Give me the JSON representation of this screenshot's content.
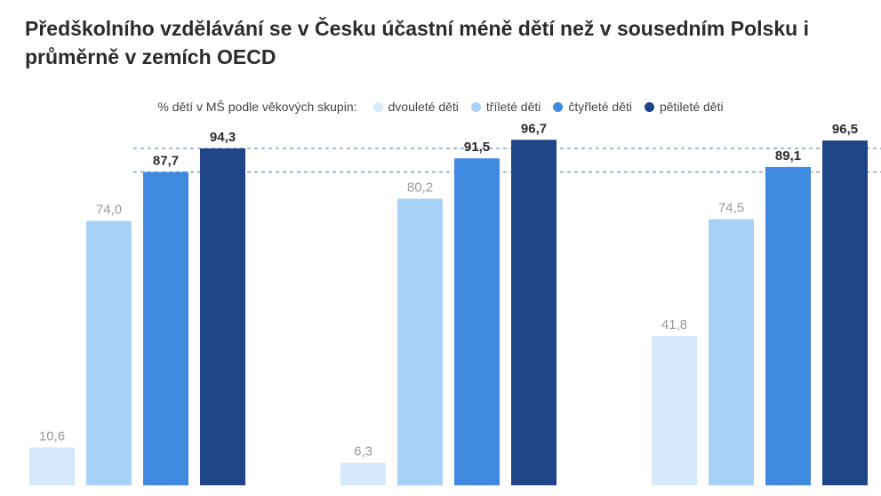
{
  "title": "Předškolního vzdělávání se v Česku účastní méně dětí než v sousedním Polsku i průměrně v zemích OECD",
  "legend": {
    "lead": "% dětí v MŠ podle věkových skupin:",
    "items": [
      {
        "label": "dvouleté děti",
        "color": "#d6e8fb"
      },
      {
        "label": "tříleté děti",
        "color": "#a9d0f7"
      },
      {
        "label": "čtyřleté děti",
        "color": "#3f8ae0"
      },
      {
        "label": "pětileté děti",
        "color": "#1f4488"
      }
    ]
  },
  "chart_data": {
    "type": "bar",
    "categories": [
      "",
      "",
      ""
    ],
    "series": [
      {
        "name": "dvouleté děti",
        "values": [
          10.6,
          6.3,
          41.8
        ],
        "color": "#d6e8fb",
        "label_color": "#9a9a9a",
        "label_bold": false
      },
      {
        "name": "tříleté děti",
        "values": [
          74.0,
          80.2,
          74.5
        ],
        "color": "#a9d0f7",
        "label_color": "#9a9a9a",
        "label_bold": false
      },
      {
        "name": "čtyřleté děti",
        "values": [
          87.7,
          91.5,
          89.1
        ],
        "color": "#3f8ae0",
        "label_color": "#2b2b2b",
        "label_bold": true
      },
      {
        "name": "pětileté děti",
        "values": [
          94.3,
          96.7,
          96.5
        ],
        "color": "#1f4488",
        "label_color": "#2b2b2b",
        "label_bold": true
      }
    ],
    "value_labels": [
      [
        "10,6",
        "74,0",
        "87,7",
        "94,3"
      ],
      [
        "6,3",
        "80,2",
        "91,5",
        "96,7"
      ],
      [
        "41,8",
        "74,5",
        "89,1",
        "96,5"
      ]
    ],
    "reference_lines": [
      {
        "value": 87.7,
        "style": "dashed"
      },
      {
        "value": 94.3,
        "style": "dashed"
      }
    ],
    "ylim": [
      0,
      100
    ],
    "grid": false,
    "legend_position": "top"
  }
}
